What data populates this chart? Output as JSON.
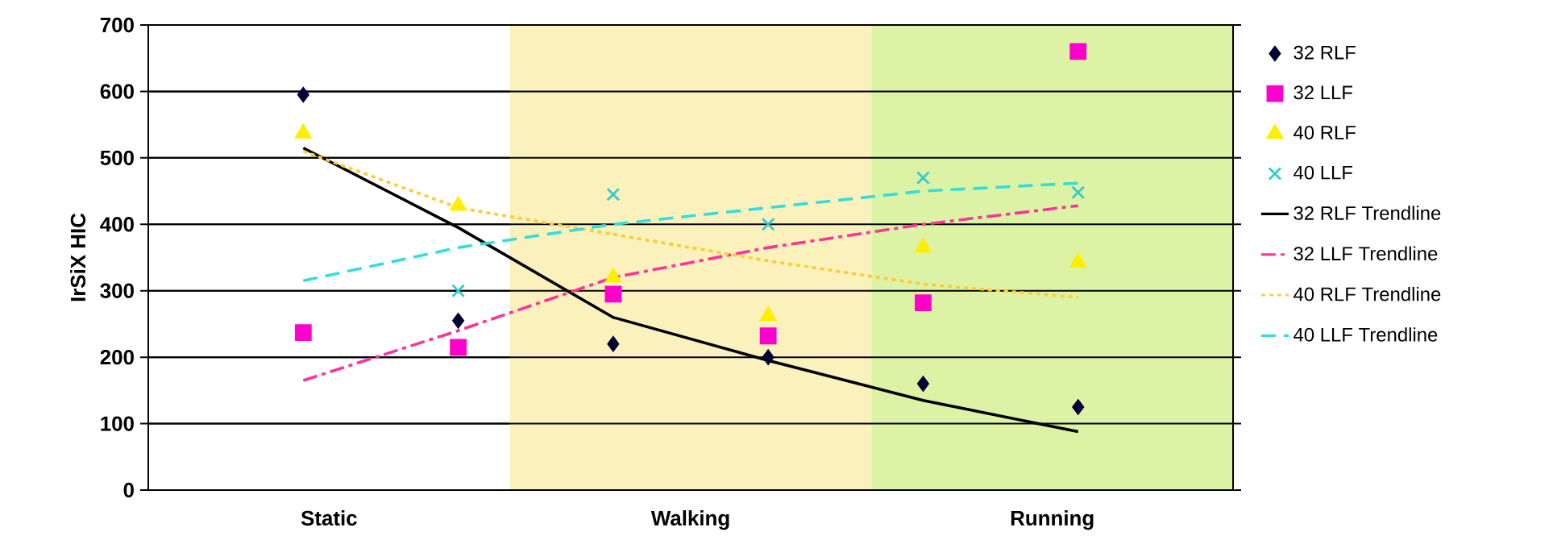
{
  "chart_data": {
    "type": "scatter",
    "ylabel": "IrSiX HIC",
    "categories": [
      null,
      null,
      null,
      null,
      null,
      null
    ],
    "annotations": [
      "Static",
      "Walking",
      "Running"
    ],
    "ylim": [
      0,
      700
    ],
    "yticks": [
      0,
      100,
      200,
      300,
      400,
      500,
      600,
      700
    ],
    "grid": "y",
    "legend": "right",
    "series": [
      {
        "name": "32 RLF",
        "marker": "diamond",
        "color": "#000033",
        "values": [
          595,
          255,
          220,
          200,
          160,
          125
        ]
      },
      {
        "name": "32 LLF",
        "marker": "square",
        "color": "#ff00cc",
        "values": [
          237,
          215,
          295,
          232,
          282,
          660
        ]
      },
      {
        "name": "40 RLF",
        "marker": "triangle",
        "color": "#ffee00",
        "values": [
          537,
          428,
          320,
          262,
          365,
          343
        ]
      },
      {
        "name": "40 LLF",
        "marker": "cross",
        "color": "#33cccc",
        "values": [
          null,
          300,
          445,
          400,
          470,
          448
        ]
      },
      {
        "name": "32 RLF Trendline",
        "type": "line",
        "line_style": "solid",
        "color": "#000000",
        "values": [
          515,
          395,
          260,
          195,
          135,
          88
        ]
      },
      {
        "name": "32 LLF Trendline",
        "type": "line",
        "line_style": "dashdot",
        "color": "#ff3399",
        "values": [
          165,
          240,
          320,
          365,
          400,
          428
        ]
      },
      {
        "name": "40 RLF Trendline",
        "type": "line",
        "line_style": "dotted",
        "color": "#ffcc33",
        "values": [
          510,
          425,
          385,
          345,
          310,
          290
        ]
      },
      {
        "name": "40 LLF Trendline",
        "type": "line",
        "line_style": "dashed",
        "color": "#33dddd",
        "values": [
          315,
          365,
          400,
          425,
          450,
          462
        ]
      }
    ]
  }
}
